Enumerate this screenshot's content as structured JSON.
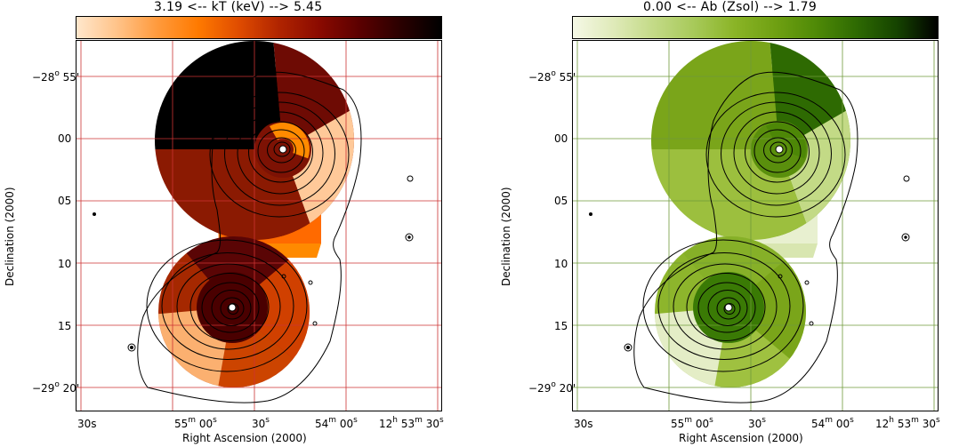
{
  "panels": [
    {
      "colorbar_title": "3.19 <-- kT (keV) --> 5.45",
      "colorbar_colors": [
        "#ffe7cc",
        "#ffc389",
        "#ff9a3c",
        "#ff7a00",
        "#e04c00",
        "#b02400",
        "#8a0a00",
        "#5a0000",
        "#2a0000",
        "#000000"
      ],
      "xlabel": "Right Ascension (2000)",
      "ylabel": "Declination (2000)",
      "grid_color": "#cc3333",
      "ra_ticks": [
        "30s",
        "55m 00s",
        "30s",
        "54m 00s",
        "12h 53m 30s"
      ],
      "dec_ticks": [
        "-28o 55'",
        "00",
        "05",
        "10",
        "15",
        "-29o 20'"
      ],
      "region_colors": {
        "c1": "#000000",
        "c2": "#6e0b04",
        "c3": "#7d1204",
        "c4": "#ff8a00",
        "c5": "#ffc999",
        "c6": "#8b1a02",
        "c7": "#ff6a00",
        "c8": "#ff8a00",
        "c9": "#a52800",
        "c10": "#5a0505",
        "c11": "#d04000",
        "c12": "#fbb070",
        "c13": "#4a0000",
        "c14": "#cc4400"
      }
    },
    {
      "colorbar_title": "0.00 <-- Ab (Zsol) --> 1.79",
      "colorbar_colors": [
        "#f5f8e6",
        "#dfeab9",
        "#c3da86",
        "#a7c959",
        "#8ab426",
        "#6fa012",
        "#4f8a07",
        "#2e6a02",
        "#154300",
        "#000000"
      ],
      "xlabel": "Right Ascension (2000)",
      "ylabel": "Declination (2000)",
      "grid_color": "#6f9a3a",
      "ra_ticks": [
        "30s",
        "55m 00s",
        "30s",
        "54m 00s",
        "12h 53m 30s"
      ],
      "dec_ticks": [
        "-28o 55'",
        "00",
        "05",
        "10",
        "15",
        "-29o 20'"
      ],
      "region_colors": {
        "c1": "#7aa51a",
        "c2": "#2e6a02",
        "c3": "#5a8f0d",
        "c4": "#4d8707",
        "c5": "#c3da86",
        "c6": "#9cbf3e",
        "c7": "#e8f0d0",
        "c8": "#d8e6b0",
        "c9": "#8db52c",
        "c10": "#86b028",
        "c11": "#7aa51a",
        "c12": "#e4edc6",
        "c13": "#3a7a05",
        "c14": "#9fc140"
      }
    }
  ]
}
